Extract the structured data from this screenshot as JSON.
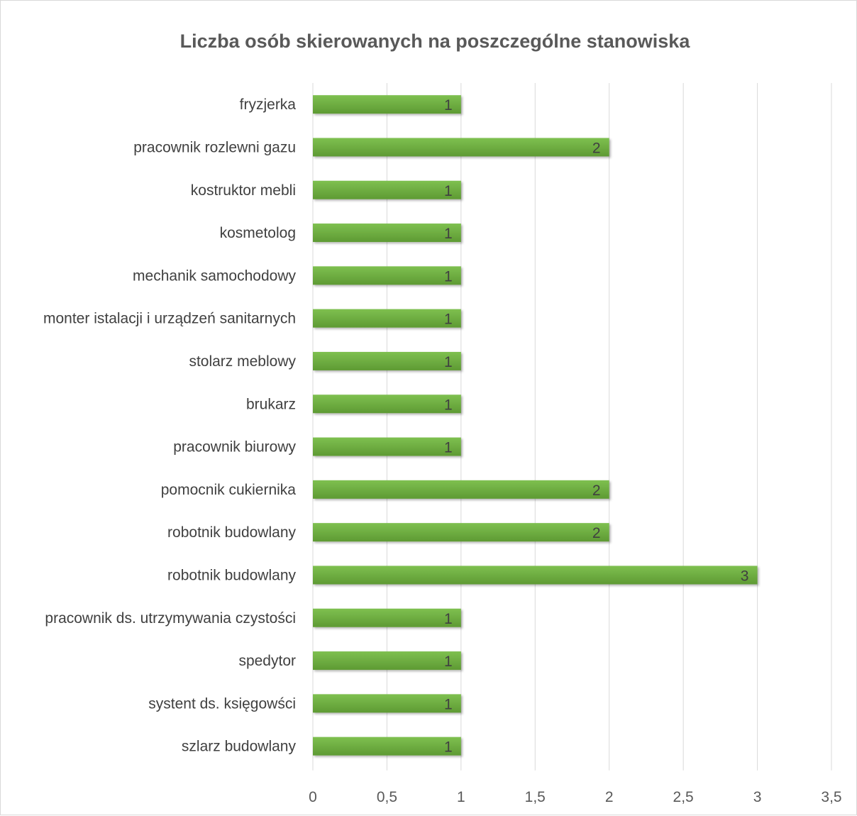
{
  "chart_data": {
    "type": "bar",
    "orientation": "horizontal",
    "title": "Liczba osób skierowanych na poszczególne stanowiska",
    "xlabel": "",
    "ylabel": "",
    "categories": [
      "fryzjerka",
      "pracownik rozlewni gazu",
      "kostruktor mebli",
      "kosmetolog",
      "mechanik samochodowy",
      "monter istalacji i urządzeń sanitarnych",
      "stolarz meblowy",
      "brukarz",
      "pracownik biurowy",
      "pomocnik cukiernika",
      "robotnik budowlany ",
      "robotnik budowlany ",
      "pracownik ds. utrzymywania czystości ",
      "spedytor",
      "systent ds. księgowści",
      "szlarz budowlany"
    ],
    "values": [
      1,
      2,
      1,
      1,
      1,
      1,
      1,
      1,
      1,
      2,
      2,
      3,
      1,
      1,
      1,
      1
    ],
    "data_labels": [
      "1",
      "2",
      "1",
      "1",
      "1",
      "1",
      "1",
      "1",
      "1",
      "2",
      "2",
      "3",
      "1",
      "1",
      "1",
      "1"
    ],
    "xlim": [
      0,
      3.5
    ],
    "xticks": [
      0,
      0.5,
      1,
      1.5,
      2,
      2.5,
      3,
      3.5
    ],
    "xtick_labels": [
      "0",
      "0,5",
      "1",
      "1,5",
      "2",
      "2,5",
      "3",
      "3,5"
    ],
    "grid": "vertical",
    "legend": "none",
    "colors": {
      "bar_top": "#7ec050",
      "bar_bottom": "#5e9a33",
      "grid": "#d9d9d9",
      "title": "#595959",
      "label": "#404040"
    }
  }
}
